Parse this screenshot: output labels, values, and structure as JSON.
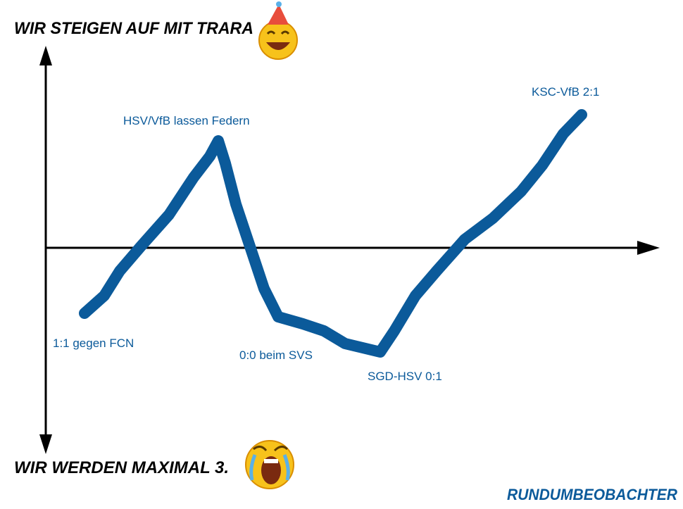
{
  "header": {
    "title": "WIR STEIGEN AUF MIT TRARA"
  },
  "footer": {
    "title": "WIR WERDEN MAXIMAL 3.",
    "brand": "RUNDUMBEOBACHTER"
  },
  "annotations": [
    "HSV/VfB lassen Federn",
    "KSC-VfB 2:1",
    "1:1 gegen FCN",
    "0:0 beim SVS",
    "SGD-HSV 0:1"
  ]
}
